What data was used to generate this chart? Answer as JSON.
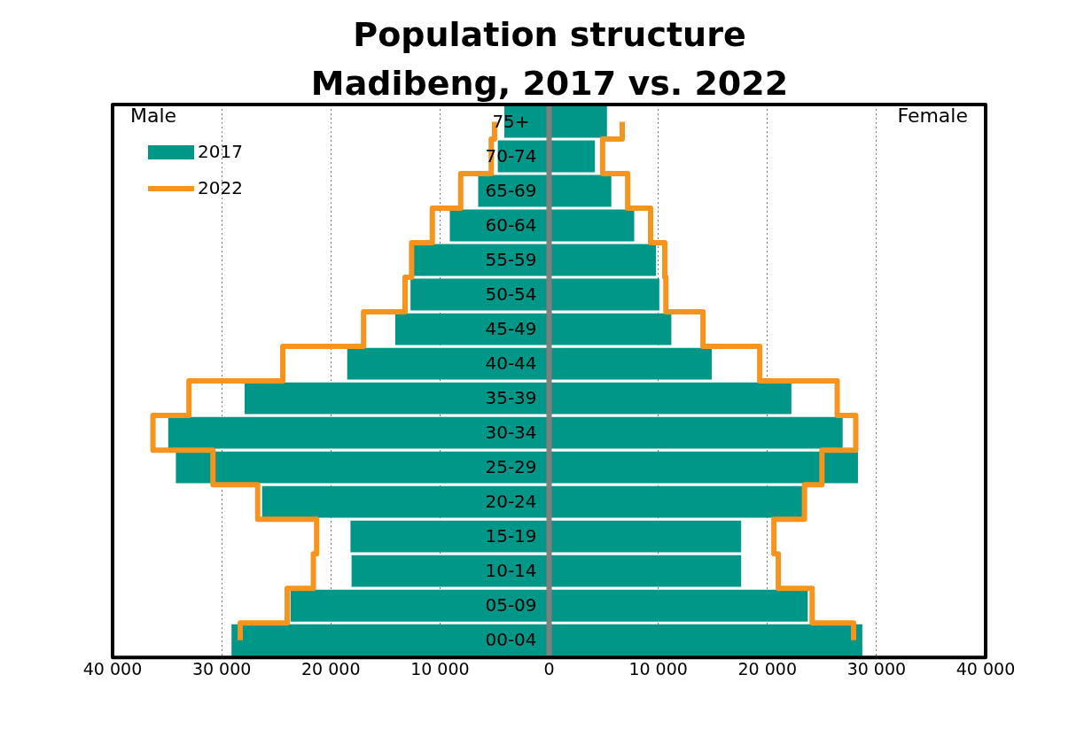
{
  "chart_data": {
    "type": "bar",
    "orientation": "horizontal",
    "title": "Population structure\nMadibeng, 2017 vs. 2022",
    "categories": [
      "75+",
      "70-74",
      "65-69",
      "60-64",
      "55-59",
      "50-54",
      "45-49",
      "40-44",
      "35-39",
      "30-34",
      "25-29",
      "20-24",
      "15-19",
      "10-14",
      "05-09",
      "00-04"
    ],
    "series": [
      {
        "name": "2017",
        "color": "#009688",
        "values": [
          -4100,
          -4700,
          -6500,
          -9100,
          -12400,
          -12700,
          -14100,
          -18500,
          -27900,
          -34900,
          -34200,
          -26300,
          -18200,
          -18100,
          -23700,
          -29100
        ]
      },
      {
        "color": "#009688",
        "values": [
          5300,
          4200,
          5700,
          7800,
          9800,
          10100,
          11200,
          14900,
          22200,
          26900,
          28300,
          23200,
          17600,
          17600,
          23700,
          28700
        ]
      },
      {
        "name": "2022",
        "type": "step",
        "color": "#f7941d",
        "values": [
          -5000,
          -5300,
          -8100,
          -10700,
          -12600,
          -13200,
          -17000,
          -24400,
          -33000,
          -36300,
          -30800,
          -26700,
          -21300,
          -21600,
          -24000,
          -28300
        ]
      },
      {
        "type": "step",
        "color": "#f7941d",
        "values": [
          6700,
          4900,
          7200,
          9300,
          10600,
          10700,
          14100,
          19300,
          26400,
          28100,
          25000,
          23400,
          20600,
          21000,
          24100,
          27900
        ]
      }
    ],
    "xlim": [
      -40000,
      40000
    ],
    "xticks": [
      {
        "value": -40000,
        "label": "40 000"
      },
      {
        "value": -30000,
        "label": "30 000"
      },
      {
        "value": -20000,
        "label": "20 000"
      },
      {
        "value": -10000,
        "label": "10 000"
      },
      0,
      {
        "value": 10000,
        "label": "10 000"
      },
      {
        "value": 20000,
        "label": "20 000"
      },
      {
        "value": 30000,
        "label": "30 000"
      },
      {
        "value": 40000,
        "label": "40 000"
      }
    ],
    "stacked": true,
    "grid": "x",
    "legend": "top left",
    "annotations": [
      "Male",
      "Female"
    ]
  }
}
